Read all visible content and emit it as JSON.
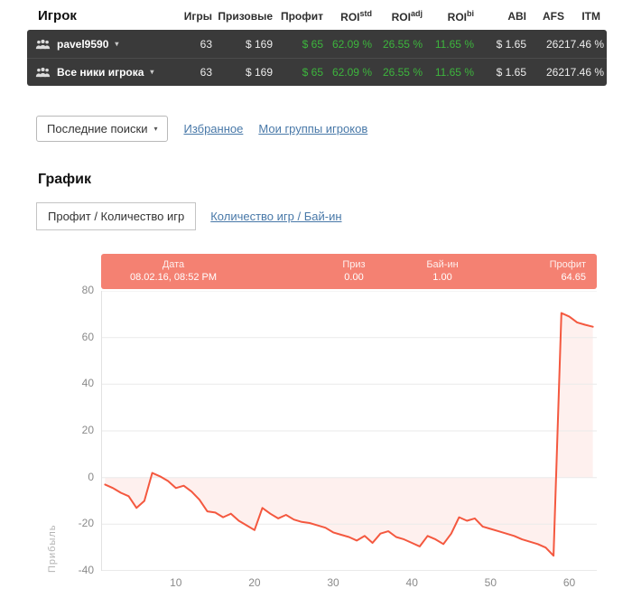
{
  "colors": {
    "panel-dark": "#3a3a3a",
    "accent-green": "#3db53d",
    "link-blue": "#4878a8",
    "chart-line": "#f4583f",
    "tooltip-bg": "#f48172"
  },
  "ui": {
    "caret_down": "▾"
  },
  "player_table": {
    "title": "Игрок",
    "columns": [
      {
        "label": "Игры"
      },
      {
        "label": "Призовые"
      },
      {
        "label": "Профит"
      },
      {
        "label": "ROI",
        "sup": "std"
      },
      {
        "label": "ROI",
        "sup": "adj"
      },
      {
        "label": "ROI",
        "sup": "bi"
      },
      {
        "label": "ABI"
      },
      {
        "label": "AFS"
      },
      {
        "label": "ITM"
      }
    ],
    "rows": [
      {
        "name": "pavel9590",
        "games": "63",
        "prizes": "$ 169",
        "profit": "$ 65",
        "roi_std": "62.09 %",
        "roi_adj": "26.55 %",
        "roi_bi": "11.65 %",
        "abi": "$ 1.65",
        "afs": "262",
        "itm": "17.46 %"
      },
      {
        "name": "Все ники игрока",
        "games": "63",
        "prizes": "$ 169",
        "profit": "$ 65",
        "roi_std": "62.09 %",
        "roi_adj": "26.55 %",
        "roi_bi": "11.65 %",
        "abi": "$ 1.65",
        "afs": "262",
        "itm": "17.46 %"
      }
    ]
  },
  "toolbar": {
    "recent_searches": "Последние поиски",
    "favorites": "Избранное",
    "my_groups": "Мои группы игроков"
  },
  "chart_section": {
    "title": "График",
    "tab_active": "Профит / Количество игр",
    "tab_link": "Количество игр / Бай-ин",
    "y_axis_title": "Прибыль",
    "tooltip": {
      "date_label": "Дата",
      "date_value": "08.02.16, 08:52 PM",
      "prize_label": "Приз",
      "prize_value": "0.00",
      "buyin_label": "Бай-ин",
      "buyin_value": "1.00",
      "profit_label": "Профит",
      "profit_value": "64.65"
    }
  },
  "chart_data": {
    "type": "line",
    "title": "",
    "xlabel": "",
    "ylabel": "Прибыль",
    "ylim": [
      -40,
      80
    ],
    "yticks": [
      80,
      60,
      40,
      20,
      0,
      -20,
      -40
    ],
    "xticks": [
      10,
      20,
      30,
      40,
      50,
      60
    ],
    "grid": "horizontal",
    "legend": "none",
    "fill_to_zero": true,
    "x": [
      1,
      2,
      3,
      4,
      5,
      6,
      7,
      8,
      9,
      10,
      11,
      12,
      13,
      14,
      15,
      16,
      17,
      18,
      19,
      20,
      21,
      22,
      23,
      24,
      25,
      26,
      27,
      28,
      29,
      30,
      31,
      32,
      33,
      34,
      35,
      36,
      37,
      38,
      39,
      40,
      41,
      42,
      43,
      44,
      45,
      46,
      47,
      48,
      49,
      50,
      51,
      52,
      53,
      54,
      55,
      56,
      57,
      58,
      59,
      60,
      61,
      62,
      63
    ],
    "values": [
      -3,
      -4.5,
      -6.5,
      -8,
      -13,
      -10,
      2,
      0.5,
      -1.5,
      -4.5,
      -3.5,
      -6,
      -9.5,
      -14.5,
      -15,
      -17,
      -15.5,
      -18.5,
      -20.5,
      -22.5,
      -13,
      -15.5,
      -17.5,
      -16,
      -18,
      -19,
      -19.5,
      -20.5,
      -21.5,
      -23.5,
      -24.5,
      -25.5,
      -27,
      -25,
      -28,
      -24,
      -23,
      -25.5,
      -26.5,
      -28,
      -29.5,
      -25,
      -26.5,
      -28.5,
      -24,
      -17,
      -18.5,
      -17.5,
      -21,
      -22,
      -23,
      -24,
      -25,
      -26.5,
      -27.5,
      -28.5,
      -30,
      -33.5,
      70.5,
      69,
      66.5,
      65.5,
      64.65
    ]
  }
}
